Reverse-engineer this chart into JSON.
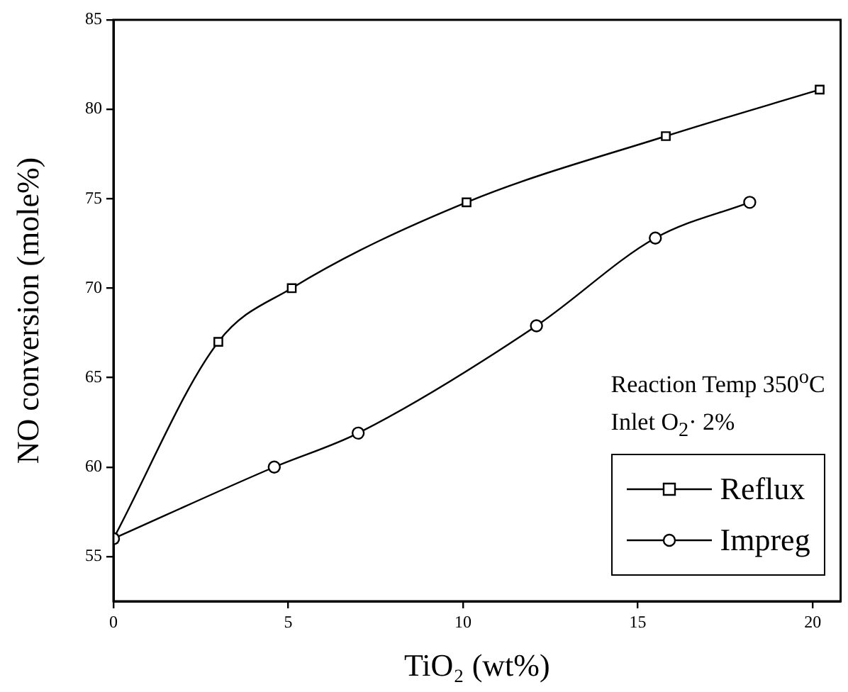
{
  "chart_data": {
    "type": "line",
    "xlabel": "TiO₂ (wt%)",
    "ylabel": "NO conversion (mole%)",
    "xlim": [
      0,
      20.8
    ],
    "xticks": [
      0,
      5,
      10,
      15,
      20
    ],
    "ylim": [
      52.5,
      85
    ],
    "yticks": [
      55,
      60,
      65,
      70,
      75,
      80,
      85
    ],
    "grid": false,
    "legend": "bottom right",
    "line_style": "solid",
    "annotations": [
      "Reaction Temp  350$^{o}$C",
      "Inlet  O$_{2}$· 2%"
    ],
    "series": [
      {
        "name": "Reflux",
        "color": "#000000",
        "marker": "square",
        "x": [
          0,
          3,
          5.1,
          10.1,
          15.8,
          20.2
        ],
        "values": [
          56,
          67,
          70,
          74.8,
          78.5,
          81.1
        ]
      },
      {
        "name": "Impreg",
        "color": "#000000",
        "marker": "circle",
        "x": [
          0,
          4.6,
          7,
          12.1,
          15.5,
          18.2
        ],
        "values": [
          56,
          60,
          61.9,
          67.9,
          72.8,
          74.8
        ]
      }
    ]
  }
}
